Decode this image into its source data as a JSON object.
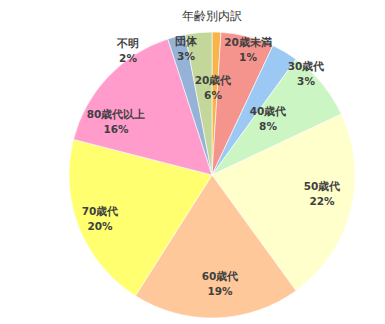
{
  "chart_data": {
    "type": "pie",
    "title": "年齢別内訳",
    "categories": [
      "20歳未満",
      "20歳代",
      "30歳代",
      "40歳代",
      "50歳代",
      "60歳代",
      "70歳代",
      "80歳代以上",
      "不明",
      "団体"
    ],
    "values": [
      1,
      6,
      3,
      8,
      22,
      19,
      20,
      16,
      2,
      3
    ],
    "value_labels": [
      "1%",
      "6%",
      "3%",
      "8%",
      "22%",
      "19%",
      "20%",
      "16%",
      "2%",
      "3%"
    ],
    "colors": [
      "#f6b44a",
      "#f4948c",
      "#9cc8f4",
      "#ccf5c4",
      "#ffffcc",
      "#ffc89a",
      "#ffff70",
      "#ff9ccc",
      "#95b3d7",
      "#c4d79b"
    ],
    "data_labels": true
  }
}
